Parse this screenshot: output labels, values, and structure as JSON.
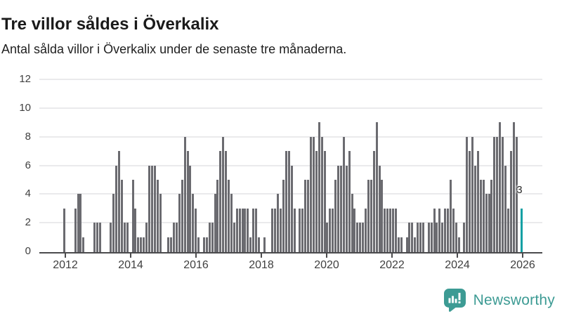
{
  "header": {
    "title": "Tre villor såldes i Överkalix",
    "subtitle": "Antal sålda villor i Överkalix under de senaste tre månaderna."
  },
  "chart_data": {
    "type": "bar",
    "title": "Tre villor såldes i Överkalix",
    "subtitle": "Antal sålda villor i Överkalix under de senaste tre månaderna.",
    "ylim": [
      0,
      12
    ],
    "yticks": [
      0,
      2,
      4,
      6,
      8,
      10,
      12
    ],
    "x_tick_labels": [
      "2012",
      "2014",
      "2016",
      "2018",
      "2020",
      "2022",
      "2024",
      "2026"
    ],
    "grid": true,
    "bar_color": "#6b6b70",
    "values": [
      3,
      0,
      0,
      0,
      3,
      4,
      4,
      1,
      0,
      0,
      0,
      2,
      2,
      2,
      0,
      0,
      0,
      2,
      4,
      6,
      7,
      5,
      2,
      2,
      0,
      5,
      3,
      1,
      1,
      1,
      2,
      6,
      6,
      6,
      5,
      4,
      0,
      0,
      1,
      1,
      2,
      2,
      4,
      5,
      8,
      7,
      6,
      4,
      3,
      1,
      0,
      1,
      1,
      2,
      2,
      4,
      5,
      7,
      8,
      7,
      5,
      4,
      2,
      3,
      3,
      3,
      3,
      3,
      1,
      3,
      3,
      1,
      0,
      1,
      0,
      0,
      3,
      3,
      4,
      3,
      5,
      7,
      7,
      6,
      3,
      0,
      3,
      3,
      5,
      5,
      8,
      8,
      7,
      9,
      8,
      7,
      2,
      3,
      3,
      5,
      6,
      6,
      8,
      6,
      7,
      4,
      3,
      2,
      2,
      2,
      3,
      5,
      5,
      7,
      9,
      6,
      5,
      3,
      3,
      3,
      3,
      3,
      1,
      1,
      0,
      1,
      2,
      2,
      1,
      2,
      2,
      2,
      0,
      2,
      2,
      3,
      2,
      3,
      2,
      3,
      3,
      5,
      3,
      2,
      1,
      0,
      2,
      8,
      7,
      8,
      6,
      7,
      5,
      5,
      4,
      4,
      5,
      8,
      8,
      9,
      8,
      6,
      3,
      7,
      9,
      8,
      0,
      3
    ],
    "highlight": {
      "index": 167,
      "value": 3,
      "label": "3",
      "color": "#13a0a4"
    }
  },
  "branding": {
    "logo_text": "Newsworthy",
    "logo_color": "#3d9b94",
    "logo_icon": "bar-chart-speech-bubble-icon"
  }
}
